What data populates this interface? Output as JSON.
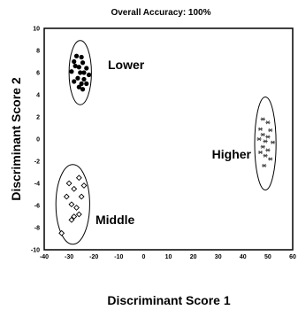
{
  "chart_data": {
    "type": "scatter",
    "title": "Overall Accuracy:  100%",
    "xlabel": "Discriminant Score 1",
    "ylabel": "Discriminant Score 2",
    "xlim": [
      -40,
      60
    ],
    "ylim": [
      -10,
      10
    ],
    "xticks": [
      -40,
      -30,
      -20,
      -10,
      0,
      10,
      20,
      30,
      40,
      50,
      60
    ],
    "yticks": [
      -10,
      -8,
      -6,
      -4,
      -2,
      0,
      2,
      4,
      6,
      8,
      10
    ],
    "grid": false,
    "legend": "none",
    "series": [
      {
        "name": "Lower",
        "marker": "filled-circle",
        "color": "#000000",
        "points": [
          [
            -27,
            7.5
          ],
          [
            -25,
            7.4
          ],
          [
            -28,
            7.0
          ],
          [
            -24.5,
            6.9
          ],
          [
            -27.5,
            6.6
          ],
          [
            -26,
            6.5
          ],
          [
            -23,
            6.4
          ],
          [
            -29,
            6.1
          ],
          [
            -25.5,
            6.0
          ],
          [
            -24,
            6.0
          ],
          [
            -22,
            5.8
          ],
          [
            -26.5,
            5.5
          ],
          [
            -24,
            5.4
          ],
          [
            -28,
            5.2
          ],
          [
            -25,
            5.0
          ],
          [
            -23,
            5.0
          ],
          [
            -26,
            4.7
          ],
          [
            -24.5,
            4.5
          ]
        ],
        "ellipse": {
          "cx": -25.5,
          "cy": 6.0,
          "rx": 4.5,
          "ry": 2.9
        }
      },
      {
        "name": "Middle",
        "marker": "open-diamond",
        "color": "#000000",
        "points": [
          [
            -26,
            -3.5
          ],
          [
            -24,
            -4.2
          ],
          [
            -30,
            -4.0
          ],
          [
            -28,
            -4.5
          ],
          [
            -25,
            -5.2
          ],
          [
            -31,
            -5.2
          ],
          [
            -29,
            -5.9
          ],
          [
            -27,
            -6.2
          ],
          [
            -26,
            -6.8
          ],
          [
            -28,
            -7.0
          ],
          [
            -29,
            -7.3
          ],
          [
            -33,
            -8.5
          ]
        ],
        "ellipse": {
          "cx": -28.5,
          "cy": -5.9,
          "rx": 6.8,
          "ry": 3.6
        }
      },
      {
        "name": "Higher",
        "marker": "asterisk",
        "color": "#444444",
        "points": [
          [
            48,
            1.8
          ],
          [
            50,
            1.5
          ],
          [
            47,
            0.9
          ],
          [
            51,
            0.8
          ],
          [
            48,
            0.4
          ],
          [
            50,
            0.2
          ],
          [
            46.5,
            0.0
          ],
          [
            49,
            -0.2
          ],
          [
            52,
            -0.3
          ],
          [
            48,
            -0.7
          ],
          [
            50,
            -1.0
          ],
          [
            47,
            -1.2
          ],
          [
            49,
            -1.5
          ],
          [
            51,
            -1.8
          ],
          [
            48.5,
            -2.4
          ]
        ],
        "ellipse": {
          "cx": 49.0,
          "cy": -0.4,
          "rx": 4.3,
          "ry": 4.2
        }
      }
    ]
  }
}
